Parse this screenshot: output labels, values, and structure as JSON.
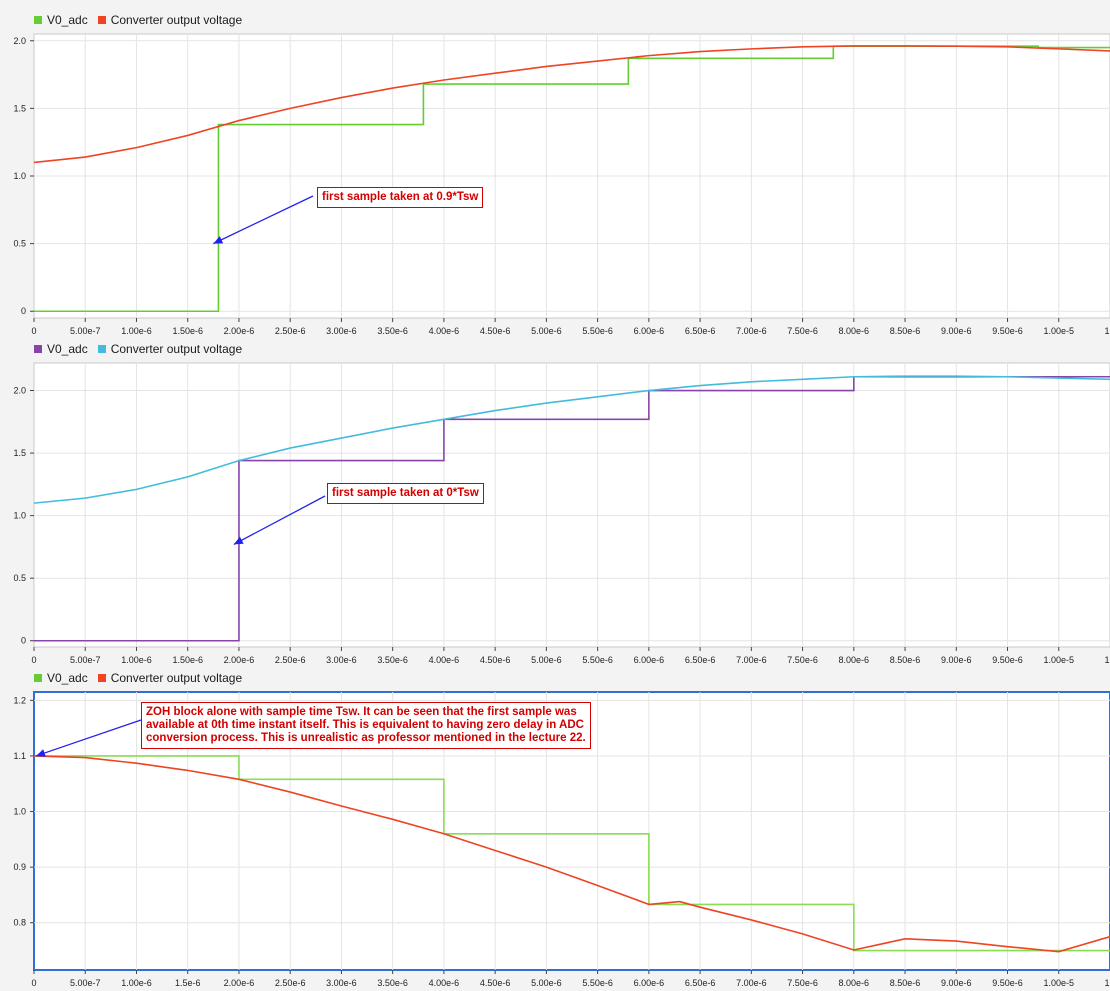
{
  "chart_data": [
    {
      "type": "line",
      "legend": [
        {
          "name": "V0_adc",
          "color": "#66cc33"
        },
        {
          "name": "Converter output voltage",
          "color": "#ee4422"
        }
      ],
      "xlim": [
        0,
        1.05e-05
      ],
      "ylim": [
        -0.05,
        2.05
      ],
      "xticks": [
        0,
        5e-07,
        1e-06,
        1.5e-06,
        2e-06,
        2.5e-06,
        3e-06,
        3.5e-06,
        4e-06,
        4.5e-06,
        5e-06,
        5.5e-06,
        6e-06,
        6.5e-06,
        7e-06,
        7.5e-06,
        8e-06,
        8.5e-06,
        9e-06,
        9.5e-06,
        1e-05
      ],
      "xtick_labels": [
        "0",
        "5.00e-7",
        "1.00e-6",
        "1.50e-6",
        "2.00e-6",
        "2.50e-6",
        "3.00e-6",
        "3.50e-6",
        "4.00e-6",
        "4.50e-6",
        "5.00e-6",
        "5.50e-6",
        "6.00e-6",
        "6.50e-6",
        "7.00e-6",
        "7.50e-6",
        "8.00e-6",
        "8.50e-6",
        "9.00e-6",
        "9.50e-6",
        "1.00e-5"
      ],
      "edge_label": "1",
      "yticks": [
        0,
        0.5,
        1.0,
        1.5,
        2.0
      ],
      "ytick_labels": [
        "0",
        "0.5",
        "1.0",
        "1.5",
        "2.0"
      ],
      "grid": true,
      "series": [
        {
          "name": "V0_adc",
          "color": "#66cc33",
          "step": true,
          "x": [
            0,
            1.8e-06,
            3.8e-06,
            5.8e-06,
            7.8e-06,
            9.8e-06,
            1.05e-05
          ],
          "y": [
            0,
            1.38,
            1.68,
            1.87,
            1.96,
            1.95,
            1.95
          ]
        },
        {
          "name": "Converter output voltage",
          "color": "#ee4422",
          "step": false,
          "x": [
            0,
            5e-07,
            1e-06,
            1.5e-06,
            2e-06,
            2.5e-06,
            3e-06,
            3.5e-06,
            4e-06,
            4.5e-06,
            5e-06,
            5.5e-06,
            6e-06,
            6.5e-06,
            7e-06,
            7.5e-06,
            8e-06,
            8.5e-06,
            9e-06,
            9.5e-06,
            1e-05,
            1.05e-05
          ],
          "y": [
            1.1,
            1.14,
            1.21,
            1.3,
            1.41,
            1.5,
            1.58,
            1.65,
            1.71,
            1.76,
            1.81,
            1.85,
            1.89,
            1.92,
            1.94,
            1.955,
            1.962,
            1.962,
            1.96,
            1.955,
            1.94,
            1.925
          ]
        }
      ],
      "annotation": {
        "text": "first sample taken at 0.9*Tsw",
        "arrow_to": [
          1.75e-06,
          0.5
        ]
      }
    },
    {
      "type": "line",
      "legend": [
        {
          "name": "V0_adc",
          "color": "#8844aa"
        },
        {
          "name": "Converter output voltage",
          "color": "#44bbdd"
        }
      ],
      "xlim": [
        0,
        1.05e-05
      ],
      "ylim": [
        -0.05,
        2.22
      ],
      "xticks": [
        0,
        5e-07,
        1e-06,
        1.5e-06,
        2e-06,
        2.5e-06,
        3e-06,
        3.5e-06,
        4e-06,
        4.5e-06,
        5e-06,
        5.5e-06,
        6e-06,
        6.5e-06,
        7e-06,
        7.5e-06,
        8e-06,
        8.5e-06,
        9e-06,
        9.5e-06,
        1e-05
      ],
      "xtick_labels": [
        "0",
        "5.00e-7",
        "1.00e-6",
        "1.50e-6",
        "2.00e-6",
        "2.50e-6",
        "3.00e-6",
        "3.50e-6",
        "4.00e-6",
        "4.50e-6",
        "5.00e-6",
        "5.50e-6",
        "6.00e-6",
        "6.50e-6",
        "7.00e-6",
        "7.50e-6",
        "8.00e-6",
        "8.50e-6",
        "9.00e-6",
        "9.50e-6",
        "1.00e-5"
      ],
      "edge_label": "1",
      "yticks": [
        0,
        0.5,
        1.0,
        1.5,
        2.0
      ],
      "ytick_labels": [
        "0",
        "0.5",
        "1.0",
        "1.5",
        "2.0"
      ],
      "grid": true,
      "series": [
        {
          "name": "V0_adc",
          "color": "#8844aa",
          "step": true,
          "x": [
            0,
            2e-06,
            4e-06,
            6e-06,
            8e-06,
            1.05e-05
          ],
          "y": [
            0,
            1.44,
            1.77,
            2.0,
            2.11,
            2.11
          ]
        },
        {
          "name": "Converter output voltage",
          "color": "#44bbdd",
          "step": false,
          "x": [
            0,
            5e-07,
            1e-06,
            1.5e-06,
            2e-06,
            2.5e-06,
            3e-06,
            3.5e-06,
            4e-06,
            4.5e-06,
            5e-06,
            5.5e-06,
            6e-06,
            6.5e-06,
            7e-06,
            7.5e-06,
            8e-06,
            8.5e-06,
            9e-06,
            9.5e-06,
            1e-05,
            1.05e-05
          ],
          "y": [
            1.1,
            1.14,
            1.21,
            1.31,
            1.44,
            1.54,
            1.62,
            1.7,
            1.77,
            1.84,
            1.9,
            1.95,
            2.0,
            2.04,
            2.07,
            2.09,
            2.11,
            2.115,
            2.115,
            2.11,
            2.1,
            2.09
          ]
        }
      ],
      "annotation": {
        "text": "first sample taken at 0*Tsw",
        "arrow_to": [
          1.95e-06,
          0.77
        ]
      }
    },
    {
      "type": "line",
      "legend": [
        {
          "name": "V0_adc",
          "color": "#66cc33"
        },
        {
          "name": "Converter output voltage",
          "color": "#ee4422"
        }
      ],
      "xlim": [
        0,
        1.05e-05
      ],
      "ylim": [
        0.715,
        1.215
      ],
      "xticks": [
        0,
        5e-07,
        1e-06,
        1.5e-06,
        2e-06,
        2.5e-06,
        3e-06,
        3.5e-06,
        4e-06,
        4.5e-06,
        5e-06,
        5.5e-06,
        6e-06,
        6.5e-06,
        7e-06,
        7.5e-06,
        8e-06,
        8.5e-06,
        9e-06,
        9.5e-06,
        1e-05
      ],
      "xtick_labels": [
        "0",
        "5.00e-7",
        "1.00e-6",
        "1.5e-6",
        "2.00e-6",
        "2.50e-6",
        "3.00e-6",
        "3.50e-6",
        "4.00e-6",
        "4.50e-6",
        "5.00e-6",
        "5.50e-6",
        "6.00e-6",
        "6.50e-6",
        "7.00e-6",
        "7.50e-6",
        "8.00e-6",
        "8.50e-6",
        "9.00e-6",
        "9.50e-6",
        "1.00e-5"
      ],
      "edge_label": "1",
      "yticks": [
        0.8,
        0.9,
        1.0,
        1.1,
        1.2
      ],
      "ytick_labels": [
        "0.8",
        "0.9",
        "1.0",
        "1.1",
        "1.2"
      ],
      "grid": true,
      "selected": true,
      "series": [
        {
          "name": "V0_adc",
          "color": "#88dd55",
          "step": true,
          "x": [
            0,
            2e-06,
            4e-06,
            6e-06,
            8e-06,
            1.05e-05
          ],
          "y": [
            1.1,
            1.058,
            0.96,
            0.833,
            0.75,
            0.75
          ]
        },
        {
          "name": "Converter output voltage",
          "color": "#ee4422",
          "step": false,
          "x": [
            0,
            5e-07,
            1e-06,
            1.5e-06,
            2e-06,
            2.5e-06,
            3e-06,
            3.5e-06,
            4e-06,
            4.5e-06,
            5e-06,
            5.5e-06,
            6e-06,
            6.3e-06,
            6.5e-06,
            7e-06,
            7.5e-06,
            8e-06,
            8.5e-06,
            9e-06,
            9.5e-06,
            1e-05,
            1.05e-05
          ],
          "y": [
            1.1,
            1.097,
            1.087,
            1.074,
            1.058,
            1.035,
            1.01,
            0.986,
            0.96,
            0.93,
            0.9,
            0.867,
            0.833,
            0.838,
            0.828,
            0.805,
            0.78,
            0.751,
            0.771,
            0.767,
            0.757,
            0.748,
            0.775
          ]
        }
      ],
      "annotation": {
        "text": "ZOH block alone with sample time Tsw. It can be seen that the first sample was\navailable at 0th time instant itself. This is equivalent to having zero delay in ADC\nconversion process.  This is unrealistic as professor mentioned in the lecture 22.",
        "arrow_to": [
          0,
          1.1
        ]
      }
    }
  ]
}
